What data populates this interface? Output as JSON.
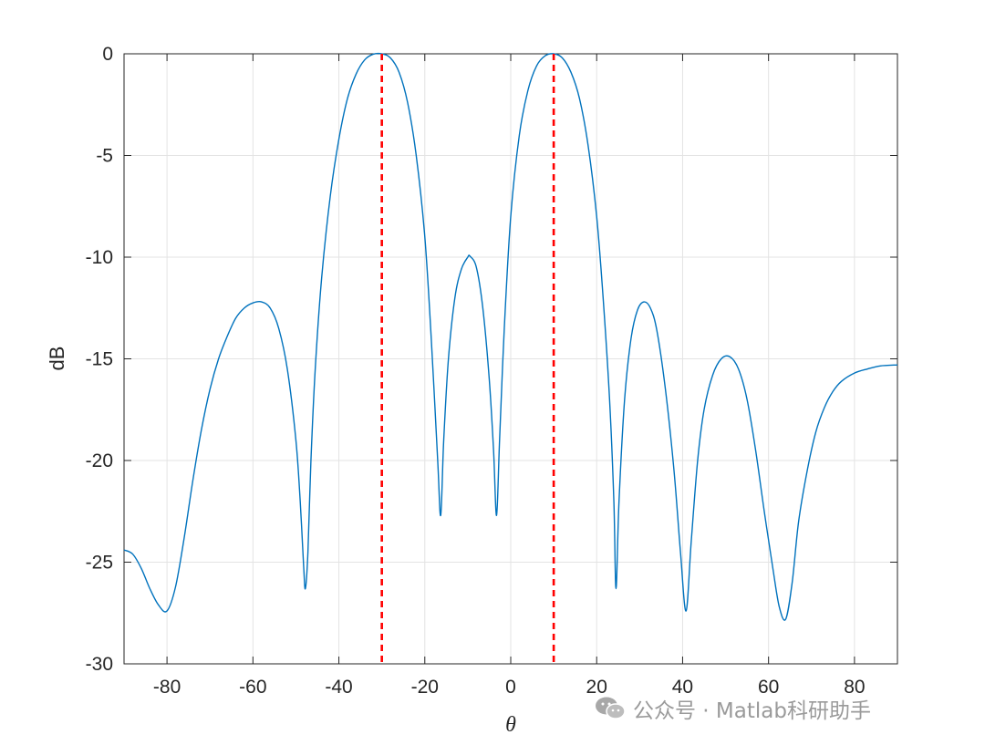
{
  "chart_data": {
    "type": "line",
    "xlabel": "θ",
    "ylabel": "dB",
    "xlim": [
      -90,
      90
    ],
    "ylim": [
      -30,
      0
    ],
    "xticks": [
      -80,
      -60,
      -40,
      -20,
      0,
      20,
      40,
      60,
      80
    ],
    "yticks": [
      0,
      -5,
      -10,
      -15,
      -20,
      -25,
      -30
    ],
    "grid": true,
    "series": [
      {
        "color": "#0072bd",
        "points": [
          [
            -90,
            -24.4
          ],
          [
            -88,
            -24.6
          ],
          [
            -86,
            -25.3
          ],
          [
            -84,
            -26.3
          ],
          [
            -82,
            -27.1
          ],
          [
            -80,
            -27.4
          ],
          [
            -78,
            -26.2
          ],
          [
            -76,
            -23.8
          ],
          [
            -74,
            -21.0
          ],
          [
            -72,
            -18.5
          ],
          [
            -70,
            -16.5
          ],
          [
            -68,
            -15.0
          ],
          [
            -66,
            -13.9
          ],
          [
            -64,
            -13.0
          ],
          [
            -62,
            -12.5
          ],
          [
            -60,
            -12.25
          ],
          [
            -58,
            -12.2
          ],
          [
            -56,
            -12.5
          ],
          [
            -54,
            -13.5
          ],
          [
            -52,
            -15.5
          ],
          [
            -50,
            -19.0
          ],
          [
            -49,
            -22.0
          ],
          [
            -48.2,
            -25.2
          ],
          [
            -47.8,
            -26.3
          ],
          [
            -47.2,
            -24.5
          ],
          [
            -46.5,
            -20.0
          ],
          [
            -45.5,
            -15.5
          ],
          [
            -44,
            -11.0
          ],
          [
            -42,
            -7.0
          ],
          [
            -40,
            -4.2
          ],
          [
            -38,
            -2.2
          ],
          [
            -36,
            -1.0
          ],
          [
            -34,
            -0.3
          ],
          [
            -32,
            -0.02
          ],
          [
            -30,
            0
          ],
          [
            -28,
            -0.2
          ],
          [
            -26,
            -0.9
          ],
          [
            -24,
            -2.4
          ],
          [
            -22,
            -5.0
          ],
          [
            -20,
            -9.0
          ],
          [
            -18.5,
            -14.0
          ],
          [
            -17,
            -20.0
          ],
          [
            -16.3,
            -22.7
          ],
          [
            -15.6,
            -19.0
          ],
          [
            -14.5,
            -15.0
          ],
          [
            -13,
            -12.0
          ],
          [
            -11.5,
            -10.6
          ],
          [
            -10,
            -10.0
          ],
          [
            -9.5,
            -9.95
          ],
          [
            -8,
            -10.5
          ],
          [
            -6.5,
            -12.5
          ],
          [
            -5,
            -16.0
          ],
          [
            -4,
            -19.5
          ],
          [
            -3.3,
            -22.7
          ],
          [
            -2.6,
            -19.0
          ],
          [
            -1.5,
            -13.5
          ],
          [
            0,
            -8.0
          ],
          [
            2,
            -4.0
          ],
          [
            4,
            -1.8
          ],
          [
            6,
            -0.6
          ],
          [
            8,
            -0.1
          ],
          [
            10,
            0
          ],
          [
            12,
            -0.2
          ],
          [
            14,
            -0.9
          ],
          [
            16,
            -2.2
          ],
          [
            18,
            -4.5
          ],
          [
            20,
            -8.0
          ],
          [
            21.5,
            -12.0
          ],
          [
            23,
            -17.0
          ],
          [
            24,
            -22.0
          ],
          [
            24.5,
            -26.3
          ],
          [
            25.2,
            -22.0
          ],
          [
            26.5,
            -17.0
          ],
          [
            28,
            -14.0
          ],
          [
            29.5,
            -12.6
          ],
          [
            31,
            -12.2
          ],
          [
            32.5,
            -12.5
          ],
          [
            34,
            -13.6
          ],
          [
            36,
            -16.5
          ],
          [
            38,
            -20.5
          ],
          [
            39.5,
            -24.5
          ],
          [
            40.8,
            -27.4
          ],
          [
            42,
            -24.0
          ],
          [
            43.5,
            -20.0
          ],
          [
            45,
            -17.5
          ],
          [
            47,
            -15.8
          ],
          [
            49,
            -15.0
          ],
          [
            51,
            -14.9
          ],
          [
            53,
            -15.5
          ],
          [
            55,
            -17.0
          ],
          [
            57,
            -19.5
          ],
          [
            59,
            -22.5
          ],
          [
            61,
            -25.3
          ],
          [
            62.5,
            -27.2
          ],
          [
            64,
            -27.8
          ],
          [
            65.5,
            -26.0
          ],
          [
            67,
            -23.0
          ],
          [
            69,
            -20.5
          ],
          [
            71,
            -18.6
          ],
          [
            73,
            -17.4
          ],
          [
            75,
            -16.6
          ],
          [
            77,
            -16.1
          ],
          [
            80,
            -15.7
          ],
          [
            83,
            -15.5
          ],
          [
            86,
            -15.35
          ],
          [
            90,
            -15.3
          ]
        ]
      }
    ],
    "vlines": [
      {
        "x": -30,
        "color": "#ff0000",
        "style": "dashed"
      },
      {
        "x": 10,
        "color": "#ff0000",
        "style": "dashed"
      }
    ]
  },
  "watermark": {
    "icon": "wechat-icon",
    "text": "公众号 · Matlab科研助手"
  }
}
